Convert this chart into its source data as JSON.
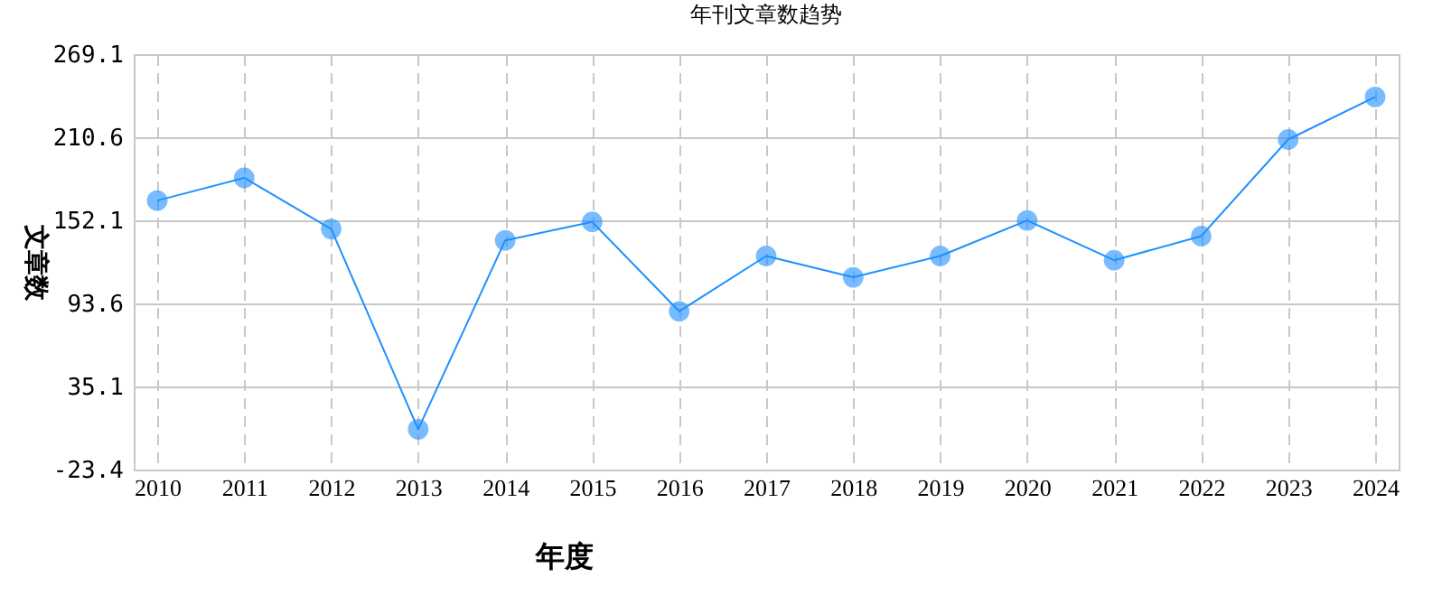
{
  "chart_data": {
    "type": "line",
    "title": "年刊文章数趋势",
    "xlabel": "年度",
    "ylabel": "文章数",
    "categories": [
      "2010",
      "2011",
      "2012",
      "2013",
      "2014",
      "2015",
      "2016",
      "2017",
      "2018",
      "2019",
      "2020",
      "2021",
      "2022",
      "2023",
      "2024"
    ],
    "series": [
      {
        "color": "#1e90ff",
        "values": [
          166,
          182,
          146,
          5,
          138,
          151,
          88,
          127,
          112,
          127,
          152,
          124,
          141,
          209,
          239
        ]
      }
    ],
    "ylim": [
      -23.4,
      269.1
    ],
    "yticks": [
      -23.4,
      35.1,
      93.6,
      152.1,
      210.6,
      269.1
    ],
    "grid": true,
    "marker": "circle",
    "line_style": "solid"
  }
}
